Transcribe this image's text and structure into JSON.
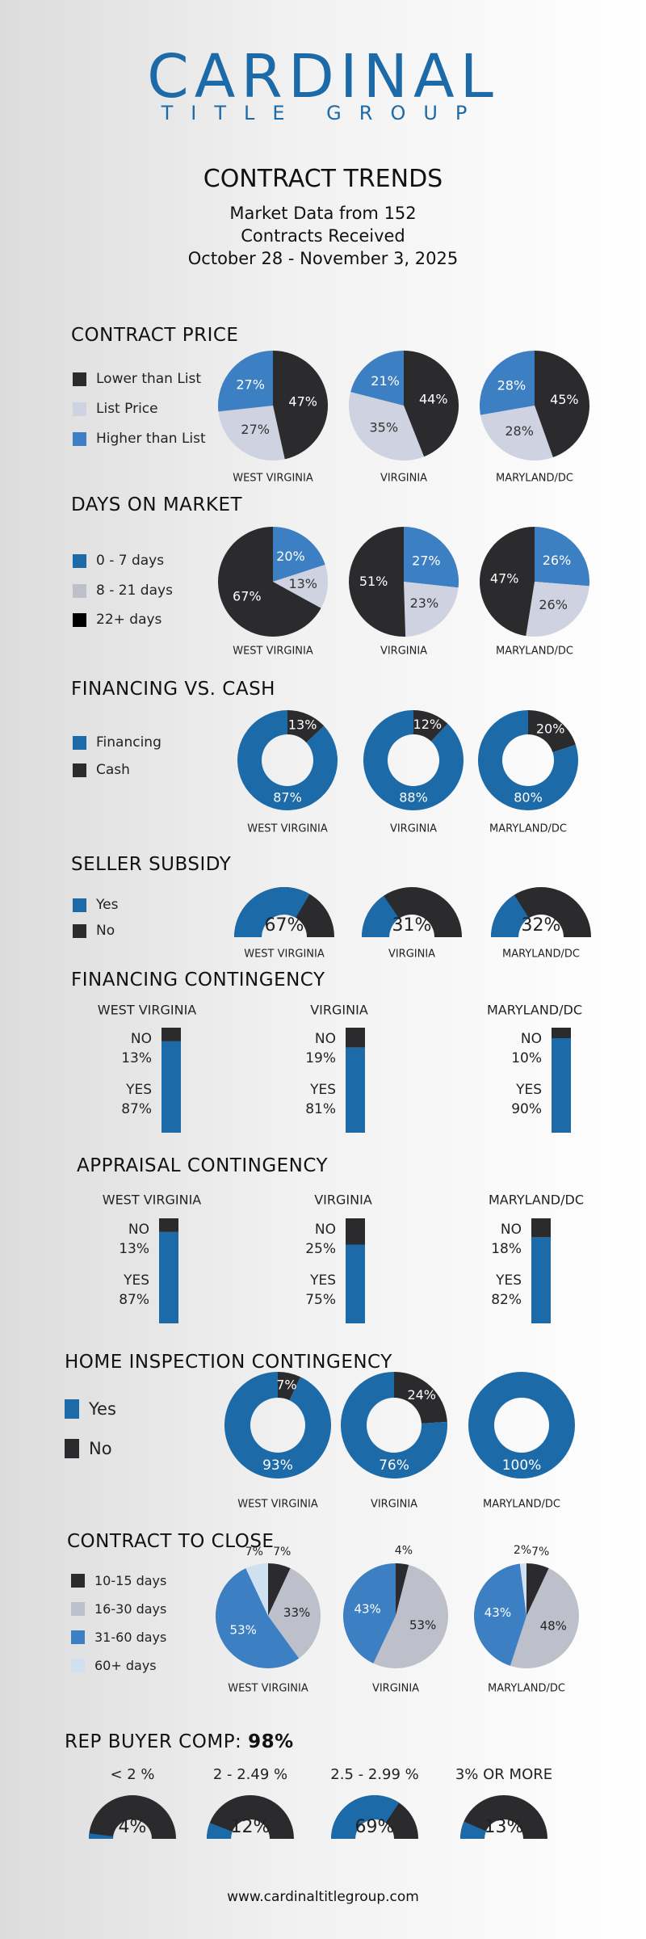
{
  "header": {
    "logo_main": "CARDINAL",
    "logo_sub": "TITLE GROUP",
    "title": "CONTRACT TRENDS",
    "sub1": "Market Data from 152",
    "sub2": "Contracts Received",
    "sub3": "October 28 - November 3, 2025"
  },
  "colors": {
    "dark": "#2b2b2e",
    "light": "#cfd2e0",
    "blue": "#3d7fc3",
    "navy": "#1c6aa8",
    "gray": "#bdbfcb",
    "pale": "#cfe1f1"
  },
  "footer": "www.cardinaltitlegroup.com",
  "chart_data": [
    {
      "id": "contract_price",
      "type": "pie",
      "title": "CONTRACT PRICE",
      "legend": [
        "Lower than List",
        "List Price",
        "Higher than List"
      ],
      "regions": [
        {
          "name": "WEST VIRGINIA",
          "values": [
            47,
            27,
            27
          ],
          "labels": [
            "47%",
            "27%",
            "27%"
          ]
        },
        {
          "name": "VIRGINIA",
          "values": [
            44,
            35,
            21
          ],
          "labels": [
            "44%",
            "35%",
            "21%"
          ]
        },
        {
          "name": "MARYLAND/DC",
          "values": [
            45,
            28,
            28
          ],
          "labels": [
            "45%",
            "28%",
            "28%"
          ]
        }
      ]
    },
    {
      "id": "days_on_market",
      "type": "pie",
      "title": "DAYS ON MARKET",
      "legend": [
        "0 - 7 days",
        "8 - 21 days",
        "22+ days"
      ],
      "regions": [
        {
          "name": "WEST VIRGINIA",
          "values": [
            20,
            13,
            67
          ],
          "labels": [
            "20%",
            "13%",
            "67%"
          ]
        },
        {
          "name": "VIRGINIA",
          "values": [
            27,
            23,
            51
          ],
          "labels": [
            "27%",
            "23%",
            "51%"
          ]
        },
        {
          "name": "MARYLAND/DC",
          "values": [
            26,
            26,
            47
          ],
          "labels": [
            "26%",
            "26%",
            "47%"
          ]
        }
      ]
    },
    {
      "id": "financing_vs_cash",
      "type": "donut",
      "title": "FINANCING VS. CASH",
      "legend": [
        "Financing",
        "Cash"
      ],
      "regions": [
        {
          "name": "WEST VIRGINIA",
          "values": [
            87,
            13
          ],
          "labels": [
            "87%",
            "13%"
          ]
        },
        {
          "name": "VIRGINIA",
          "values": [
            88,
            12
          ],
          "labels": [
            "88%",
            "12%"
          ]
        },
        {
          "name": "MARYLAND/DC",
          "values": [
            80,
            20
          ],
          "labels": [
            "80%",
            "20%"
          ]
        }
      ]
    },
    {
      "id": "seller_subsidy",
      "type": "gauge",
      "title": "SELLER SUBSIDY",
      "legend": [
        "Yes",
        "No"
      ],
      "regions": [
        {
          "name": "WEST VIRGINIA",
          "value": 67,
          "label": "67%"
        },
        {
          "name": "VIRGINIA",
          "value": 31,
          "label": "31%"
        },
        {
          "name": "MARYLAND/DC",
          "value": 32,
          "label": "32%"
        }
      ]
    },
    {
      "id": "financing_contingency",
      "type": "stacked_bar",
      "title": "FINANCING CONTINGENCY",
      "regions": [
        {
          "name": "WEST VIRGINIA",
          "no": 13,
          "yes": 87,
          "no_label": "NO",
          "no_pct": "13%",
          "yes_label": "YES",
          "yes_pct": "87%"
        },
        {
          "name": "VIRGINIA",
          "no": 19,
          "yes": 81,
          "no_label": "NO",
          "no_pct": "19%",
          "yes_label": "YES",
          "yes_pct": "81%"
        },
        {
          "name": "MARYLAND/DC",
          "no": 10,
          "yes": 90,
          "no_label": "NO",
          "no_pct": "10%",
          "yes_label": "YES",
          "yes_pct": "90%"
        }
      ]
    },
    {
      "id": "appraisal_contingency",
      "type": "stacked_bar",
      "title": "APPRAISAL CONTINGENCY",
      "regions": [
        {
          "name": "WEST VIRGINIA",
          "no": 13,
          "yes": 87,
          "no_label": "NO",
          "no_pct": "13%",
          "yes_label": "YES",
          "yes_pct": "87%"
        },
        {
          "name": "VIRGINIA",
          "no": 25,
          "yes": 75,
          "no_label": "NO",
          "no_pct": "25%",
          "yes_label": "YES",
          "yes_pct": "75%"
        },
        {
          "name": "MARYLAND/DC",
          "no": 18,
          "yes": 82,
          "no_label": "NO",
          "no_pct": "18%",
          "yes_label": "YES",
          "yes_pct": "82%"
        }
      ]
    },
    {
      "id": "home_inspection",
      "type": "donut",
      "title": "HOME INSPECTION CONTINGENCY",
      "legend": [
        "Yes",
        "No"
      ],
      "regions": [
        {
          "name": "WEST VIRGINIA",
          "values": [
            93,
            7
          ],
          "labels": [
            "93%",
            "7%"
          ]
        },
        {
          "name": "VIRGINIA",
          "values": [
            76,
            24
          ],
          "labels": [
            "76%",
            "24%"
          ]
        },
        {
          "name": "MARYLAND/DC",
          "values": [
            100,
            0
          ],
          "labels": [
            "100%",
            ""
          ]
        }
      ]
    },
    {
      "id": "contract_to_close",
      "type": "pie",
      "title": "CONTRACT TO CLOSE",
      "legend": [
        "10-15 days",
        "16-30 days",
        "31-60 days",
        "60+ days"
      ],
      "regions": [
        {
          "name": "WEST VIRGINIA",
          "values": [
            7,
            33,
            53,
            7
          ],
          "labels": [
            "7%",
            "33%",
            "53%",
            "7%"
          ]
        },
        {
          "name": "VIRGINIA",
          "values": [
            4,
            53,
            43,
            0
          ],
          "labels": [
            "4%",
            "53%",
            "43%",
            ""
          ]
        },
        {
          "name": "MARYLAND/DC",
          "values": [
            7,
            48,
            43,
            2
          ],
          "labels": [
            "7%",
            "48%",
            "43%",
            "2%"
          ]
        }
      ]
    },
    {
      "id": "rep_buyer_comp",
      "type": "gauge",
      "title": "REP BUYER COMP:",
      "title_value": "98%",
      "regions": [
        {
          "name": "< 2 %",
          "value": 4,
          "label": "4%"
        },
        {
          "name": "2 - 2.49 %",
          "value": 12,
          "label": "12%"
        },
        {
          "name": "2.5 - 2.99 %",
          "value": 69,
          "label": "69%"
        },
        {
          "name": "3% OR MORE",
          "value": 13,
          "label": "13%"
        }
      ]
    }
  ]
}
